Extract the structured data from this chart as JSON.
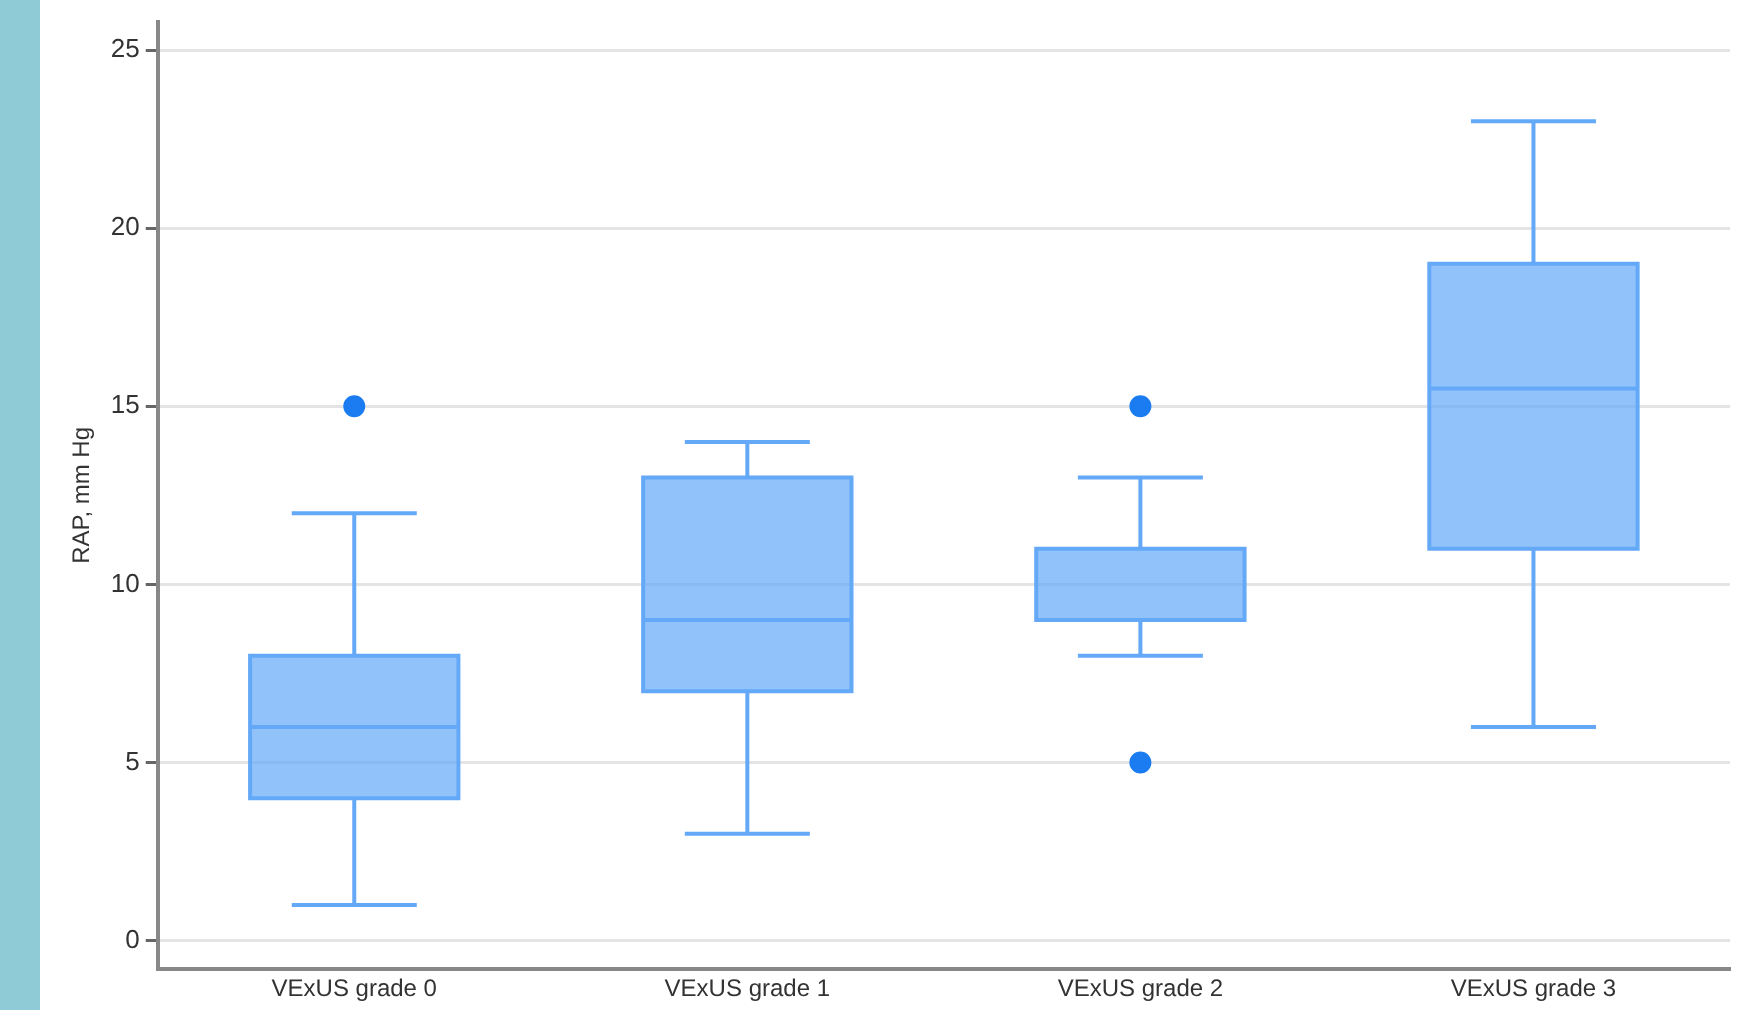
{
  "chart_data": {
    "type": "box",
    "ylabel": "RAP, mm Hg",
    "categories": [
      "VExUS grade 0",
      "VExUS grade 1",
      "VExUS grade 2",
      "VExUS grade 3"
    ],
    "color": "#64a8f8",
    "boxes": [
      {
        "low": 1,
        "q1": 4,
        "median": 6,
        "q3": 8,
        "high": 12,
        "outliers": [
          15
        ]
      },
      {
        "low": 3,
        "q1": 7,
        "median": 9,
        "q3": 13,
        "high": 14
      },
      {
        "low": 8,
        "q1": 9,
        "median": 9,
        "q3": 11,
        "high": 13,
        "outliers": [
          15,
          5
        ]
      },
      {
        "low": 6,
        "q1": 11,
        "median": 15.5,
        "q3": 19,
        "high": 23
      }
    ],
    "ylim": [
      -0.8,
      25.8
    ],
    "yticks": [
      0,
      5,
      10,
      15,
      20,
      25
    ],
    "grid": "y"
  }
}
